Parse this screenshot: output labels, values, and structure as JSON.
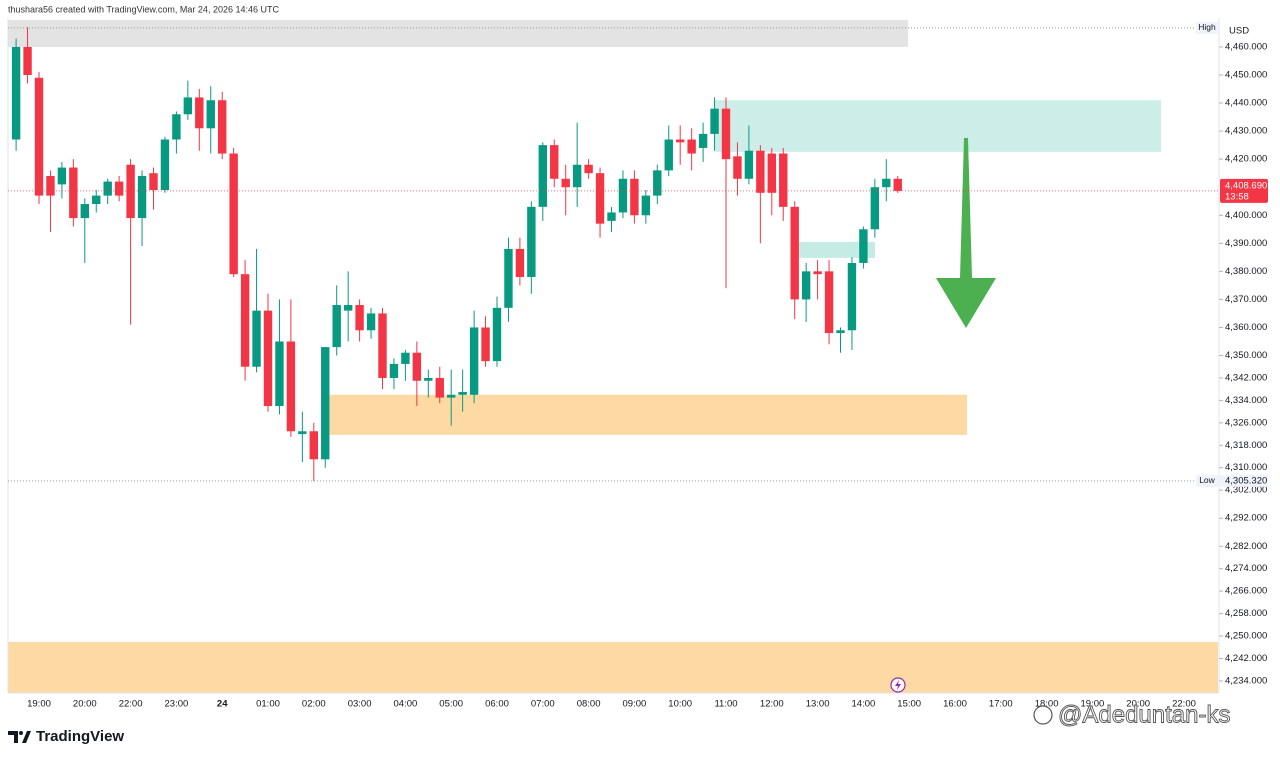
{
  "chart_data": {
    "type": "candlestick",
    "header": "thushara56 created with TradingView.com, Mar 24, 2026 14:46 UTC",
    "currency": "USD",
    "brand": "TradingView",
    "watermark": "@Adeduntan-ks",
    "up_color": "#089981",
    "down_color": "#f23645",
    "categories": [
      null,
      null,
      "19:00",
      null,
      null,
      null,
      "20:00",
      null,
      null,
      null,
      "22:00",
      null,
      null,
      null,
      "23:00",
      null,
      null,
      null,
      "24",
      null,
      null,
      null,
      "01:00",
      null,
      null,
      null,
      "02:00",
      null,
      null,
      null,
      "03:00",
      null,
      null,
      null,
      "04:00",
      null,
      null,
      null,
      "05:00",
      null,
      null,
      null,
      "06:00",
      null,
      null,
      null,
      "07:00",
      null,
      null,
      null,
      "08:00",
      null,
      null,
      null,
      "09:00",
      null,
      null,
      null,
      "10:00",
      null,
      null,
      null,
      "11:00",
      null,
      null,
      null,
      "12:00",
      null,
      null,
      null,
      "13:00",
      null,
      null,
      null,
      "14:00",
      null,
      null,
      null,
      "15:00",
      null,
      null,
      null,
      "16:00",
      null,
      null,
      null,
      "17:00",
      null,
      null,
      null,
      "18:00",
      null,
      null,
      null,
      "19:00",
      null,
      null,
      null,
      "20:00",
      null,
      null,
      null,
      "22:00",
      null
    ],
    "open": [
      4427,
      4460,
      4449,
      4414,
      4411,
      4417,
      4399,
      4404,
      4407,
      4412,
      4418,
      4399,
      4415,
      4409,
      4427,
      4436,
      4442,
      4431,
      4441,
      4422,
      4379,
      4346,
      4366,
      4332,
      4355,
      4322,
      4323,
      4313,
      4353,
      4366,
      4368,
      4359,
      4365,
      4342,
      4347,
      4351,
      4341,
      4342,
      4335,
      4336,
      4336,
      4360,
      4348,
      4367,
      4388,
      4378,
      4403,
      4425,
      4413,
      4410,
      4418,
      4415,
      4398,
      4401,
      4413,
      4400,
      4407,
      4416,
      4427,
      4427,
      4424,
      4429,
      4438,
      4421,
      4413,
      4423,
      4422,
      4422,
      4403,
      4370,
      4380,
      4380,
      4358,
      4359,
      4383,
      4395,
      4410,
      4413,
      null,
      null,
      null,
      null,
      null,
      null,
      null,
      null,
      null,
      null,
      null,
      null,
      null,
      null,
      null,
      null,
      null,
      null,
      null,
      null,
      null,
      null,
      null,
      null,
      null,
      null
    ],
    "high": [
      4463,
      4467,
      4451,
      4416,
      4419,
      4420,
      4406,
      4409,
      4413,
      4414,
      4420,
      4416,
      4417,
      4428,
      4437,
      4448,
      4445,
      4446,
      4444,
      4424,
      4384,
      4388,
      4372,
      4370,
      4370,
      4330,
      4326,
      4353,
      4375,
      4380,
      4370,
      4367,
      4367,
      4349,
      4352,
      4355,
      4345,
      4346,
      4345,
      4345,
      4366,
      4364,
      4371,
      4392,
      4392,
      4405,
      4426,
      4427,
      4418,
      4433,
      4420,
      4417,
      4403,
      4416,
      4416,
      4409,
      4418,
      4432,
      4432,
      4431,
      4433,
      4442,
      4442,
      4426,
      4432,
      4425,
      4424,
      4424,
      4405,
      4383,
      4384,
      4384,
      4360,
      4385,
      4396,
      4413,
      4420,
      4414,
      null,
      null,
      null,
      null,
      null,
      null,
      null,
      null,
      null,
      null,
      null,
      null,
      null,
      null,
      null,
      null,
      null,
      null,
      null,
      null,
      null,
      null,
      null,
      null,
      null,
      null
    ],
    "low": [
      4423,
      4447,
      4404,
      4394,
      4406,
      4396,
      4383,
      4401,
      4404,
      4405,
      4361,
      4389,
      4402,
      4408,
      4422,
      4434,
      4423,
      4422,
      4420,
      4378,
      4341,
      4344,
      4330,
      4329,
      4321,
      4312,
      4305.32,
      4310,
      4350,
      4355,
      4355,
      4356,
      4338,
      4338,
      4341,
      4332,
      4335,
      4333,
      4325,
      4330,
      4333,
      4346,
      4346,
      4362,
      4375,
      4372,
      4398,
      4410,
      4400,
      4403,
      4413,
      4392,
      4394,
      4399,
      4397,
      4397,
      4404,
      4414,
      4418,
      4416,
      4419,
      4423,
      4374,
      4407,
      4411,
      4390,
      4400,
      4398,
      4363,
      4362,
      4370,
      4354,
      4351,
      4352,
      4381,
      4392,
      4405,
      4408,
      null,
      null,
      null,
      null,
      null,
      null,
      null,
      null,
      null,
      null,
      null,
      null,
      null,
      null,
      null,
      null,
      null,
      null,
      null,
      null,
      null,
      null,
      null,
      null,
      null,
      null
    ],
    "close": [
      4460,
      4450,
      4407,
      4407,
      4417,
      4399,
      4404,
      4407,
      4412,
      4407,
      4399,
      4414,
      4409,
      4427,
      4436,
      4442,
      4431,
      4441,
      4422,
      4379,
      4346,
      4366,
      4332,
      4355,
      4323,
      4323,
      4313,
      4353,
      4368,
      4368,
      4359,
      4365,
      4342,
      4347,
      4351,
      4341,
      4342,
      4335,
      4336,
      4337,
      4360,
      4348,
      4367,
      4388,
      4378,
      4403,
      4425,
      4413,
      4410,
      4418,
      4415,
      4397,
      4401,
      4413,
      4400,
      4407,
      4416,
      4427,
      4426,
      4422,
      4429,
      4438,
      4420,
      4413,
      4423,
      4408,
      4408,
      4403,
      4370,
      4380,
      4379,
      4358,
      4359,
      4383,
      4395,
      4410,
      4413,
      4408.69,
      null,
      null,
      null,
      null,
      null,
      null,
      null,
      null,
      null,
      null,
      null,
      null,
      null,
      null,
      null,
      null,
      null,
      null,
      null,
      null,
      null,
      null,
      null,
      null,
      null,
      null
    ],
    "ylim": [
      4229.7,
      4469.6
    ],
    "yticks": [
      {
        "value": 4460,
        "label": "4,460.000"
      },
      {
        "value": 4450,
        "label": "4,450.000"
      },
      {
        "value": 4440,
        "label": "4,440.000"
      },
      {
        "value": 4430,
        "label": "4,430.000"
      },
      {
        "value": 4420,
        "label": "4,420.000"
      },
      {
        "value": 4400,
        "label": "4,400.000"
      },
      {
        "value": 4390,
        "label": "4,390.000"
      },
      {
        "value": 4380,
        "label": "4,380.000"
      },
      {
        "value": 4370,
        "label": "4,370.000"
      },
      {
        "value": 4360,
        "label": "4,360.000"
      },
      {
        "value": 4350,
        "label": "4,350.000"
      },
      {
        "value": 4342,
        "label": "4,342.000"
      },
      {
        "value": 4334,
        "label": "4,334.000"
      },
      {
        "value": 4326,
        "label": "4,326.000"
      },
      {
        "value": 4318,
        "label": "4,318.000"
      },
      {
        "value": 4310,
        "label": "4,310.000"
      },
      {
        "value": 4302,
        "label": "4,302.000"
      },
      {
        "value": 4292,
        "label": "4,292.000"
      },
      {
        "value": 4282,
        "label": "4,282.000"
      },
      {
        "value": 4274,
        "label": "4,274.000"
      },
      {
        "value": 4266,
        "label": "4,266.000"
      },
      {
        "value": 4258,
        "label": "4,258.000"
      },
      {
        "value": 4250,
        "label": "4,250.000"
      },
      {
        "value": 4242,
        "label": "4,242.000"
      },
      {
        "value": 4234,
        "label": "4,234.000"
      }
    ],
    "last_price": {
      "value": 4408.69,
      "label": "4,408.690",
      "countdown": "13:58",
      "color": "#f23645"
    },
    "high_line": {
      "value": 4466.8,
      "label": "High"
    },
    "low_line": {
      "value": 4305.32,
      "label": "4,305.320",
      "tag": "Low"
    },
    "zones": [
      {
        "from": 4469.6,
        "to": 4460,
        "color": "#e3e3e3"
      },
      {
        "from": 4441,
        "to": 4422.6,
        "color": "#cdeee8"
      },
      {
        "from": 4390.5,
        "to": 4384.8,
        "color": "#c4ebe4"
      },
      {
        "from": 4336,
        "to": 4321.7,
        "color": "#fdd9a3"
      },
      {
        "from": 4247.9,
        "to": 4229.7,
        "color": "#fdd9a3"
      }
    ]
  }
}
